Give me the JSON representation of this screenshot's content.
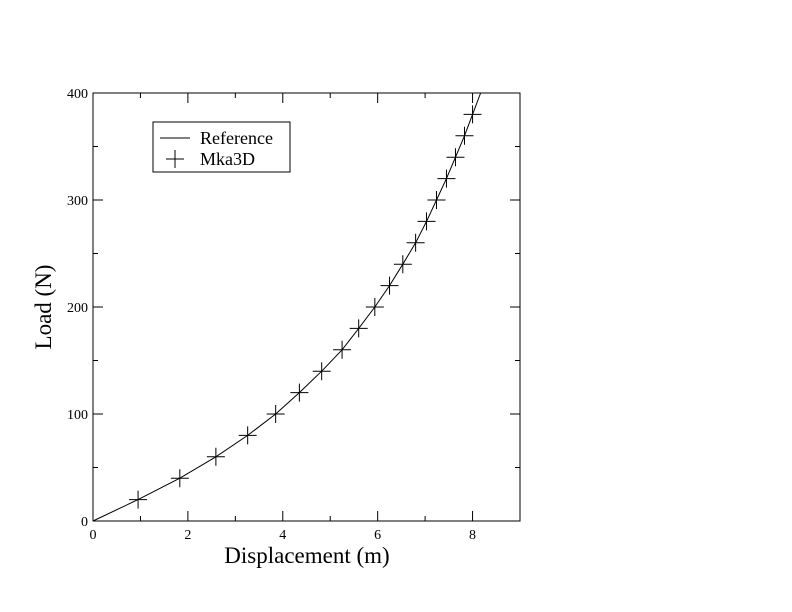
{
  "chart_data": {
    "type": "line",
    "x_label": "Displacement (m)",
    "y_label": "Load (N)",
    "xlim": [
      0,
      9
    ],
    "ylim": [
      0,
      400
    ],
    "xticks": [
      0,
      2,
      4,
      6,
      8
    ],
    "yticks": [
      0,
      100,
      200,
      300,
      400
    ],
    "xminorticks": [
      1,
      3,
      5,
      7
    ],
    "yminorticks": [
      50,
      150,
      250,
      350
    ],
    "legend": "upper left",
    "series": [
      {
        "name": "Reference",
        "color": "#000000",
        "style": "line",
        "x": [
          0,
          0.95,
          1.83,
          2.59,
          3.26,
          3.85,
          4.35,
          4.82,
          5.25,
          5.6,
          5.94,
          6.25,
          6.53,
          6.8,
          7.03,
          7.24,
          7.45,
          7.64,
          7.83,
          8.0,
          8.17
        ],
        "values": [
          0,
          20,
          40,
          60,
          80,
          100,
          120,
          140,
          160,
          180,
          200,
          220,
          240,
          260,
          280,
          300,
          320,
          340,
          360,
          380,
          400
        ]
      },
      {
        "name": "Mka3D",
        "color": "#000000",
        "style": "plus",
        "x": [
          0.95,
          1.83,
          2.59,
          3.26,
          3.85,
          4.35,
          4.82,
          5.25,
          5.6,
          5.94,
          6.25,
          6.53,
          6.8,
          7.03,
          7.24,
          7.45,
          7.64,
          7.83,
          8.0
        ],
        "values": [
          20,
          40,
          60,
          80,
          100,
          120,
          140,
          160,
          180,
          200,
          220,
          240,
          260,
          280,
          300,
          320,
          340,
          360,
          380
        ]
      }
    ]
  }
}
